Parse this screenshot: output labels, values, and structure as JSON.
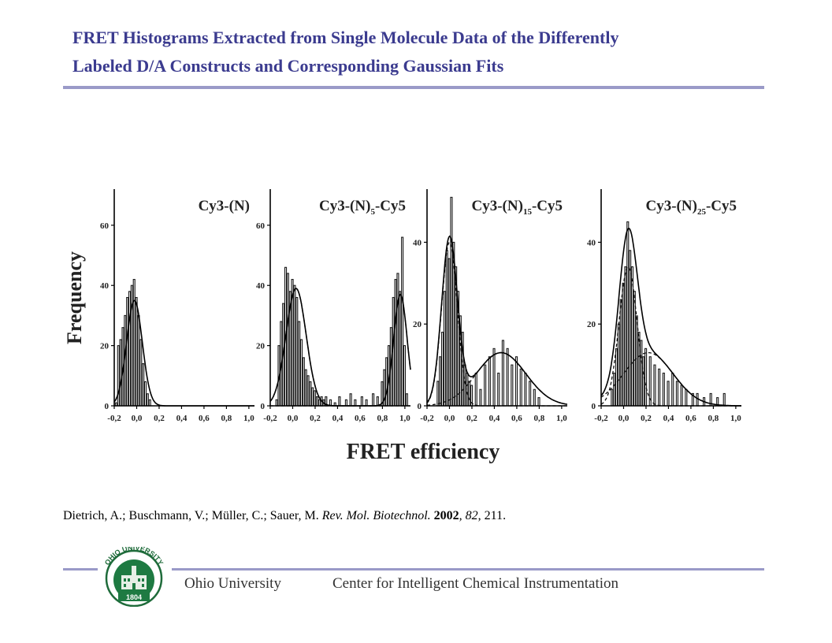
{
  "slide": {
    "title_line1": "FRET Histograms Extracted from Single Molecule Data of the Differently",
    "title_line2": "Labeled D/A Constructs and Corresponding Gaussian Fits"
  },
  "figure": {
    "ylabel": "Frequency",
    "xlabel": "FRET efficiency",
    "x_ticks": [
      "-0,2",
      "0,0",
      "0,2",
      "0,4",
      "0,6",
      "0,8",
      "1,0"
    ],
    "panels": [
      {
        "label": "Cy3-(N)",
        "y_ticks": [
          "0",
          "20",
          "40",
          "60"
        ]
      },
      {
        "label_main": "Cy3-(N)",
        "label_sub": "5",
        "label_suffix": "-Cy5",
        "y_ticks": [
          "0",
          "20",
          "40",
          "60"
        ]
      },
      {
        "label_main": "Cy3-(N)",
        "label_sub": "15",
        "label_suffix": "-Cy5",
        "y_ticks": [
          "0",
          "20",
          "40"
        ]
      },
      {
        "label_main": "Cy3-(N)",
        "label_sub": "25",
        "label_suffix": "-Cy5",
        "y_ticks": [
          "0",
          "20",
          "40"
        ]
      }
    ]
  },
  "chart_data": [
    {
      "type": "bar",
      "title": "Cy3-(N)",
      "xlabel": "FRET efficiency",
      "ylabel": "Frequency",
      "xlim": [
        -0.2,
        1.05
      ],
      "ylim": [
        0,
        72
      ],
      "x": [
        -0.18,
        -0.16,
        -0.14,
        -0.12,
        -0.1,
        -0.08,
        -0.06,
        -0.04,
        -0.02,
        0.0,
        0.02,
        0.04,
        0.06,
        0.08,
        0.1,
        0.12
      ],
      "values": [
        1,
        20,
        22,
        26,
        30,
        36,
        38,
        40,
        42,
        36,
        30,
        22,
        14,
        8,
        4,
        2
      ],
      "fit": [
        {
          "mu": -0.02,
          "sigma": 0.07,
          "amp": 35
        }
      ]
    },
    {
      "type": "bar",
      "title": "Cy3-(N)5-Cy5",
      "xlabel": "FRET efficiency",
      "ylabel": "Frequency",
      "xlim": [
        -0.2,
        1.05
      ],
      "ylim": [
        0,
        72
      ],
      "x": [
        -0.14,
        -0.12,
        -0.1,
        -0.08,
        -0.06,
        -0.04,
        -0.02,
        0.0,
        0.02,
        0.04,
        0.06,
        0.08,
        0.1,
        0.12,
        0.14,
        0.16,
        0.18,
        0.2,
        0.22,
        0.24,
        0.26,
        0.28,
        0.3,
        0.34,
        0.38,
        0.42,
        0.48,
        0.52,
        0.56,
        0.62,
        0.66,
        0.72,
        0.76,
        0.8,
        0.82,
        0.84,
        0.86,
        0.88,
        0.9,
        0.92,
        0.94,
        0.96,
        0.98,
        1.0,
        1.02
      ],
      "values": [
        2,
        20,
        28,
        34,
        46,
        44,
        38,
        42,
        40,
        36,
        28,
        22,
        16,
        12,
        10,
        8,
        6,
        5,
        3,
        2,
        3,
        2,
        3,
        2,
        1,
        3,
        2,
        4,
        2,
        3,
        2,
        4,
        3,
        8,
        12,
        16,
        20,
        26,
        36,
        42,
        44,
        38,
        56,
        20,
        4
      ],
      "fit": [
        {
          "mu": 0.03,
          "sigma": 0.09,
          "amp": 39
        },
        {
          "mu": 0.96,
          "sigma": 0.06,
          "amp": 37
        }
      ]
    },
    {
      "type": "bar",
      "title": "Cy3-(N)15-Cy5",
      "xlabel": "FRET efficiency",
      "ylabel": "Frequency",
      "xlim": [
        -0.2,
        1.05
      ],
      "ylim": [
        0,
        53
      ],
      "x": [
        -0.1,
        -0.08,
        -0.06,
        -0.04,
        -0.02,
        0.0,
        0.02,
        0.04,
        0.06,
        0.08,
        0.1,
        0.12,
        0.14,
        0.16,
        0.18,
        0.2,
        0.24,
        0.28,
        0.32,
        0.36,
        0.4,
        0.44,
        0.48,
        0.52,
        0.56,
        0.6,
        0.64,
        0.68,
        0.72,
        0.76,
        0.8
      ],
      "values": [
        6,
        12,
        18,
        28,
        38,
        36,
        51,
        40,
        34,
        28,
        22,
        18,
        10,
        8,
        6,
        5,
        8,
        4,
        10,
        12,
        14,
        8,
        16,
        14,
        10,
        12,
        9,
        8,
        6,
        4,
        2
      ],
      "fit": [
        {
          "mu": 0.0,
          "sigma": 0.07,
          "amp": 40
        },
        {
          "mu": 0.46,
          "sigma": 0.22,
          "amp": 13
        }
      ]
    },
    {
      "type": "bar",
      "title": "Cy3-(N)25-Cy5",
      "xlabel": "FRET efficiency",
      "ylabel": "Frequency",
      "xlim": [
        -0.2,
        1.05
      ],
      "ylim": [
        0,
        53
      ],
      "x": [
        -0.1,
        -0.08,
        -0.06,
        -0.04,
        -0.02,
        0.0,
        0.02,
        0.04,
        0.06,
        0.08,
        0.1,
        0.12,
        0.14,
        0.16,
        0.18,
        0.2,
        0.24,
        0.28,
        0.32,
        0.36,
        0.4,
        0.44,
        0.48,
        0.52,
        0.56,
        0.62,
        0.66,
        0.72,
        0.78,
        0.84,
        0.9
      ],
      "values": [
        4,
        8,
        14,
        20,
        26,
        30,
        34,
        45,
        38,
        34,
        28,
        22,
        18,
        16,
        12,
        14,
        12,
        10,
        9,
        8,
        6,
        8,
        6,
        5,
        4,
        3,
        3,
        2,
        3,
        2,
        3
      ],
      "fit": [
        {
          "mu": 0.04,
          "sigma": 0.08,
          "amp": 34
        },
        {
          "mu": 0.22,
          "sigma": 0.22,
          "amp": 13
        }
      ]
    }
  ],
  "citation": {
    "authors": "Dietrich, A.; Buschmann, V.; Müller, C.; Sauer, M. ",
    "journal": "Rev.  Mol.  Biotechnol.",
    "year": "2002",
    "volume": "82",
    "pages": ", 211."
  },
  "footer": {
    "university": "Ohio University",
    "center": "Center for Intelligent Chemical Instrumentation",
    "logo_text": "OHIO UNIVERSITY",
    "logo_year": "1804"
  }
}
